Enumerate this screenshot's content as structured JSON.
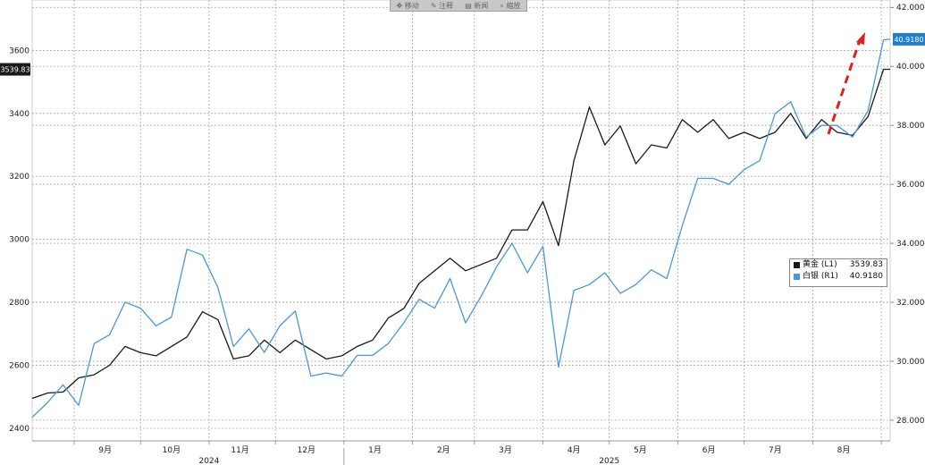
{
  "toolbar": {
    "items": [
      {
        "icon": "move-icon",
        "label": "移动"
      },
      {
        "icon": "annotate-icon",
        "label": "注释"
      },
      {
        "icon": "chart-icon",
        "label": "新闻"
      },
      {
        "icon": "zoom-icon",
        "label": "缩放"
      }
    ]
  },
  "chart_data": {
    "type": "line",
    "title": "",
    "x_range": [
      "2024-08-13",
      "2025-09-05"
    ],
    "x_ticks_months": [
      {
        "label": "9月",
        "date": "2024-09-15"
      },
      {
        "label": "10月",
        "date": "2024-10-15"
      },
      {
        "label": "11月",
        "date": "2024-11-15"
      },
      {
        "label": "12月",
        "date": "2024-12-15"
      },
      {
        "label": "1月",
        "date": "2025-01-15"
      },
      {
        "label": "2月",
        "date": "2025-02-15"
      },
      {
        "label": "3月",
        "date": "2025-03-15"
      },
      {
        "label": "4月",
        "date": "2025-04-15"
      },
      {
        "label": "5月",
        "date": "2025-05-15"
      },
      {
        "label": "6月",
        "date": "2025-06-15"
      },
      {
        "label": "7月",
        "date": "2025-07-15"
      },
      {
        "label": "8月",
        "date": "2025-08-15"
      }
    ],
    "x_ticks_years": [
      {
        "label": "2024",
        "date": "2024-11-01"
      },
      {
        "label": "2025",
        "date": "2025-05-01"
      }
    ],
    "y_left": {
      "ticks": [
        2400,
        2600,
        2800,
        3000,
        3200,
        3400,
        3600
      ],
      "range": [
        2360,
        3760
      ]
    },
    "y_right": {
      "ticks": [
        "28.0000",
        "30.0000",
        "32.0000",
        "34.0000",
        "36.0000",
        "38.0000",
        "40.0000",
        "42.0000"
      ],
      "range": [
        27.3,
        42.25
      ]
    },
    "grid": true,
    "legend_position": "right",
    "series": [
      {
        "name": "黄金 (L1)",
        "axis": "left",
        "color": "#1a1a1a",
        "last_value": "3539.83",
        "points": [
          [
            "2024-08-13",
            2495
          ],
          [
            "2024-08-20",
            2512
          ],
          [
            "2024-08-27",
            2515
          ],
          [
            "2024-09-03",
            2560
          ],
          [
            "2024-09-10",
            2570
          ],
          [
            "2024-09-17",
            2600
          ],
          [
            "2024-09-24",
            2660
          ],
          [
            "2024-10-01",
            2640
          ],
          [
            "2024-10-08",
            2630
          ],
          [
            "2024-10-15",
            2660
          ],
          [
            "2024-10-22",
            2690
          ],
          [
            "2024-10-29",
            2770
          ],
          [
            "2024-11-05",
            2745
          ],
          [
            "2024-11-12",
            2620
          ],
          [
            "2024-11-19",
            2630
          ],
          [
            "2024-11-26",
            2680
          ],
          [
            "2024-12-03",
            2640
          ],
          [
            "2024-12-10",
            2680
          ],
          [
            "2024-12-17",
            2650
          ],
          [
            "2024-12-24",
            2620
          ],
          [
            "2024-12-31",
            2630
          ],
          [
            "2025-01-07",
            2660
          ],
          [
            "2025-01-14",
            2680
          ],
          [
            "2025-01-21",
            2750
          ],
          [
            "2025-01-28",
            2780
          ],
          [
            "2025-02-04",
            2860
          ],
          [
            "2025-02-11",
            2900
          ],
          [
            "2025-02-18",
            2940
          ],
          [
            "2025-02-25",
            2900
          ],
          [
            "2025-03-04",
            2920
          ],
          [
            "2025-03-11",
            2940
          ],
          [
            "2025-03-18",
            3030
          ],
          [
            "2025-03-25",
            3030
          ],
          [
            "2025-04-01",
            3120
          ],
          [
            "2025-04-08",
            2980
          ],
          [
            "2025-04-15",
            3250
          ],
          [
            "2025-04-22",
            3420
          ],
          [
            "2025-04-29",
            3300
          ],
          [
            "2025-05-06",
            3360
          ],
          [
            "2025-05-13",
            3240
          ],
          [
            "2025-05-20",
            3300
          ],
          [
            "2025-05-27",
            3290
          ],
          [
            "2025-06-03",
            3380
          ],
          [
            "2025-06-10",
            3340
          ],
          [
            "2025-06-17",
            3380
          ],
          [
            "2025-06-24",
            3320
          ],
          [
            "2025-07-01",
            3340
          ],
          [
            "2025-07-08",
            3320
          ],
          [
            "2025-07-15",
            3340
          ],
          [
            "2025-07-22",
            3400
          ],
          [
            "2025-07-29",
            3320
          ],
          [
            "2025-08-05",
            3380
          ],
          [
            "2025-08-12",
            3340
          ],
          [
            "2025-08-19",
            3330
          ],
          [
            "2025-08-26",
            3390
          ],
          [
            "2025-09-02",
            3540
          ],
          [
            "2025-09-05",
            3540
          ]
        ]
      },
      {
        "name": "白银 (R1)",
        "axis": "right",
        "color": "#4a98d8",
        "last_value": "40.9180",
        "points": [
          [
            "2024-08-13",
            28.1
          ],
          [
            "2024-08-20",
            28.6
          ],
          [
            "2024-08-27",
            29.2
          ],
          [
            "2024-09-03",
            28.5
          ],
          [
            "2024-09-10",
            30.6
          ],
          [
            "2024-09-17",
            30.9
          ],
          [
            "2024-09-24",
            32.0
          ],
          [
            "2024-10-01",
            31.8
          ],
          [
            "2024-10-08",
            31.2
          ],
          [
            "2024-10-15",
            31.5
          ],
          [
            "2024-10-22",
            33.8
          ],
          [
            "2024-10-29",
            33.6
          ],
          [
            "2024-11-05",
            32.5
          ],
          [
            "2024-11-12",
            30.5
          ],
          [
            "2024-11-19",
            31.1
          ],
          [
            "2024-11-26",
            30.3
          ],
          [
            "2024-12-03",
            31.2
          ],
          [
            "2024-12-10",
            31.7
          ],
          [
            "2024-12-17",
            29.5
          ],
          [
            "2024-12-24",
            29.6
          ],
          [
            "2024-12-31",
            29.5
          ],
          [
            "2025-01-07",
            30.2
          ],
          [
            "2025-01-14",
            30.2
          ],
          [
            "2025-01-21",
            30.6
          ],
          [
            "2025-01-28",
            31.3
          ],
          [
            "2025-02-04",
            32.1
          ],
          [
            "2025-02-11",
            31.8
          ],
          [
            "2025-02-18",
            32.8
          ],
          [
            "2025-02-25",
            31.3
          ],
          [
            "2025-03-04",
            32.2
          ],
          [
            "2025-03-11",
            33.2
          ],
          [
            "2025-03-18",
            34.0
          ],
          [
            "2025-03-25",
            33.0
          ],
          [
            "2025-04-01",
            33.9
          ],
          [
            "2025-04-08",
            29.8
          ],
          [
            "2025-04-15",
            32.4
          ],
          [
            "2025-04-22",
            32.6
          ],
          [
            "2025-04-29",
            33.0
          ],
          [
            "2025-05-06",
            32.3
          ],
          [
            "2025-05-13",
            32.6
          ],
          [
            "2025-05-20",
            33.1
          ],
          [
            "2025-05-27",
            32.8
          ],
          [
            "2025-06-03",
            34.6
          ],
          [
            "2025-06-10",
            36.2
          ],
          [
            "2025-06-17",
            36.2
          ],
          [
            "2025-06-24",
            36.0
          ],
          [
            "2025-07-01",
            36.5
          ],
          [
            "2025-07-08",
            36.8
          ],
          [
            "2025-07-15",
            38.4
          ],
          [
            "2025-07-22",
            38.8
          ],
          [
            "2025-07-29",
            37.6
          ],
          [
            "2025-08-05",
            38.0
          ],
          [
            "2025-08-12",
            38.0
          ],
          [
            "2025-08-19",
            37.6
          ],
          [
            "2025-08-26",
            38.5
          ],
          [
            "2025-09-02",
            40.9
          ],
          [
            "2025-09-05",
            40.92
          ]
        ]
      }
    ]
  }
}
